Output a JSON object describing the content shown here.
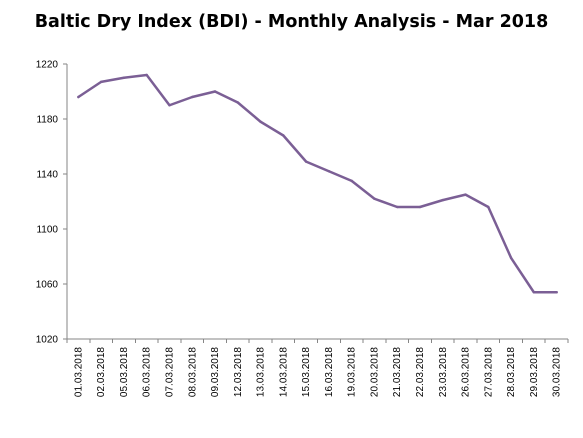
{
  "chart_data": {
    "type": "line",
    "title": "Baltic Dry Index (BDI) - Monthly Analysis - Mar 2018",
    "xlabel": "",
    "ylabel": "",
    "x": [
      "01.03.2018",
      "02.03.2018",
      "05.03.2018",
      "06.03.2018",
      "07.03.2018",
      "08.03.2018",
      "09.03.2018",
      "12.03.2018",
      "13.03.2018",
      "14.03.2018",
      "15.03.2018",
      "16.03.2018",
      "19.03.2018",
      "20.03.2018",
      "21.03.2018",
      "22.03.2018",
      "23.03.2018",
      "26.03.2018",
      "27.03.2018",
      "28.03.2018",
      "29.03.2018",
      "30.03.2018"
    ],
    "series": [
      {
        "values": [
          1196,
          1207,
          1210,
          1212,
          1190,
          1196,
          1200,
          1192,
          1178,
          1168,
          1149,
          1142,
          1135,
          1122,
          1116,
          1116,
          1121,
          1125,
          1116,
          1079,
          1054,
          1054
        ],
        "color": "#7b5f95"
      }
    ],
    "ylim": [
      1020,
      1220
    ],
    "yticks": [
      1020,
      1060,
      1100,
      1140,
      1180,
      1220
    ],
    "yticklabels": [
      "1020",
      "1060",
      "1100",
      "1140",
      "1180",
      "1220"
    ],
    "grid": false,
    "legend": "none",
    "axis_color": "#868686"
  }
}
